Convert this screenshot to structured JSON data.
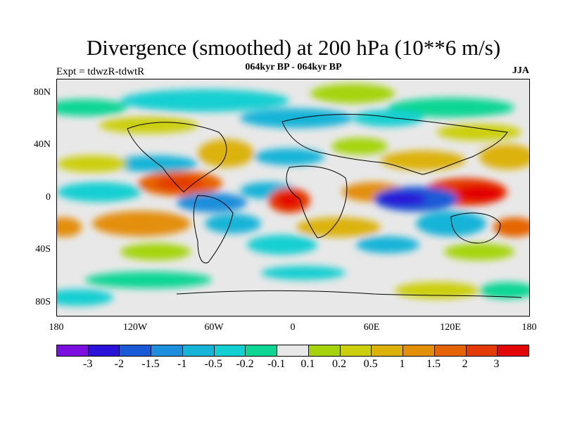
{
  "title": "Divergence (smoothed) at 200 hPa (10**6 m/s)",
  "experiment": "Expt = tdwzR-tdwtR",
  "period": "064kyr BP - 064kyr BP",
  "season": "JJA",
  "map": {
    "lat_labels": [
      "80N",
      "40N",
      "0",
      "40S",
      "80S"
    ],
    "lon_labels": [
      "180",
      "120W",
      "60W",
      "0",
      "60E",
      "120E",
      "180"
    ]
  },
  "colorbar": {
    "colors": [
      "#7a0fe0",
      "#2a12d8",
      "#1a5ad6",
      "#1e8fdc",
      "#16b4d8",
      "#12cfd2",
      "#0dd694",
      "#e8e8e8",
      "#a5d40c",
      "#cccf0c",
      "#dcb20a",
      "#e38f08",
      "#e56506",
      "#e43a06",
      "#e30606"
    ],
    "labels": [
      "-3",
      "-2",
      "-1.5",
      "-1",
      "-0.5",
      "-0.2",
      "-0.1",
      "0.1",
      "0.2",
      "0.5",
      "1",
      "1.5",
      "2",
      "3"
    ]
  }
}
